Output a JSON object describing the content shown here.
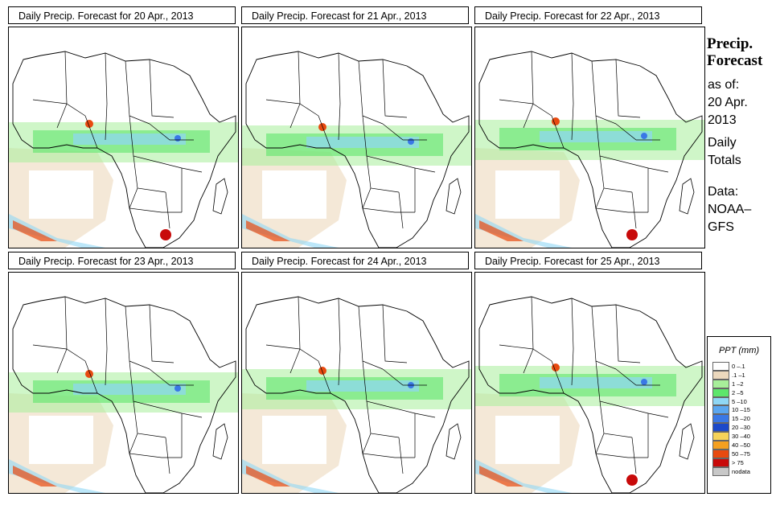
{
  "panels": [
    {
      "title": "Daily Precip. Forecast for  20 Apr., 2013"
    },
    {
      "title": "Daily Precip. Forecast for  21 Apr., 2013"
    },
    {
      "title": "Daily Precip. Forecast for  22 Apr., 2013"
    },
    {
      "title": "Daily Precip. Forecast for  23 Apr., 2013"
    },
    {
      "title": "Daily Precip. Forecast for  24 Apr., 2013"
    },
    {
      "title": "Daily Precip. Forecast for  25 Apr., 2013"
    }
  ],
  "sidebar": {
    "title_line1": "Precip.",
    "title_line2": "Forecast",
    "asof_line1": "as of:",
    "asof_line2": "20 Apr.",
    "asof_line3": "2013",
    "daily_line1": "Daily",
    "daily_line2": "Totals",
    "data_line1": "Data:",
    "data_line2": "NOAA–",
    "data_line3": "GFS"
  },
  "legend": {
    "title": "PPT (mm)",
    "items": [
      {
        "label": "0 –.1",
        "color": "#ffffff"
      },
      {
        "label": ".1 –1",
        "color": "#ecd8bd"
      },
      {
        "label": "1 –2",
        "color": "#a8ef9a"
      },
      {
        "label": "2 –5",
        "color": "#5de66b"
      },
      {
        "label": "5 –10",
        "color": "#8fd7f5"
      },
      {
        "label": "10 –15",
        "color": "#5ba7f0"
      },
      {
        "label": "15 –20",
        "color": "#3a78e6"
      },
      {
        "label": "20 –30",
        "color": "#1c49c9"
      },
      {
        "label": "30 –40",
        "color": "#f6d35a"
      },
      {
        "label": "40 –50",
        "color": "#f4a020"
      },
      {
        "label": "50 –75",
        "color": "#e84a10"
      },
      {
        "label": "> 75",
        "color": "#c80a0a"
      },
      {
        "label": "nodata",
        "color": "#c8c8c8"
      }
    ]
  }
}
